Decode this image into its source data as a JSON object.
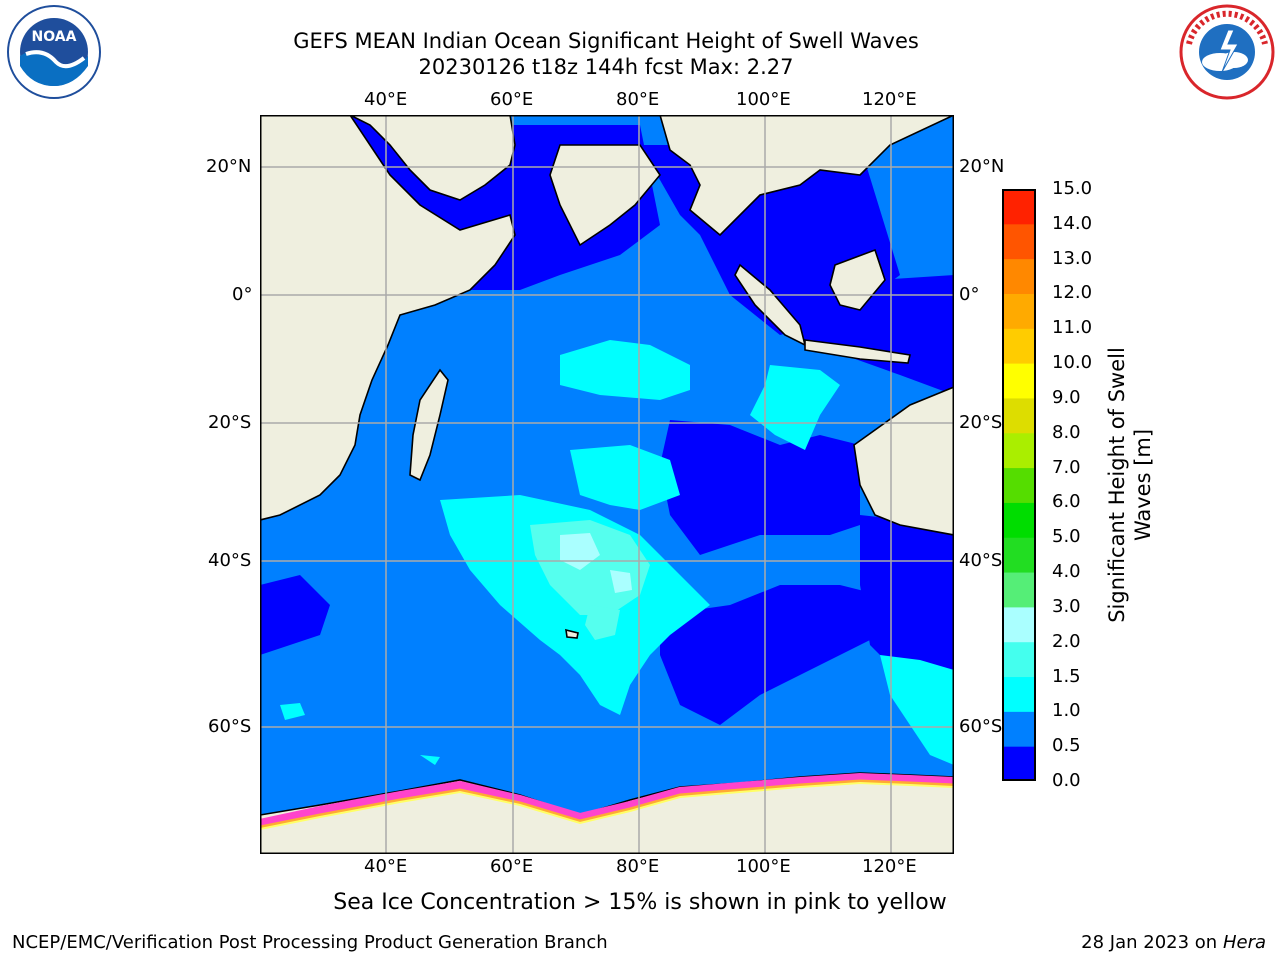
{
  "title": {
    "line1": "GEFS MEAN Indian Ocean Significant Height of Swell Waves",
    "line2": "20230126 t18z 144h fcst   Max: 2.27"
  },
  "logos": {
    "left": {
      "name": "NOAA",
      "ring_text": "NATIONAL OCEANIC AND ATMOSPHERIC ADMINISTRATION · U.S. DEPARTMENT OF COMMERCE",
      "colors": [
        "#1f4e9c",
        "#0a6fc2",
        "#ffffff"
      ]
    },
    "right": {
      "name": "NATIONAL WEATHER SERVICE",
      "colors": [
        "#d9262b",
        "#1f6fc1",
        "#ffffff"
      ]
    }
  },
  "map": {
    "projection": "cylindrical",
    "lon_range": [
      "20°E",
      "130°E"
    ],
    "lat_range": [
      "75°S",
      "28°N"
    ],
    "lon_ticks": [
      "40°E",
      "60°E",
      "80°E",
      "100°E",
      "120°E"
    ],
    "lat_ticks": [
      "20°N",
      "0°",
      "20°S",
      "40°S",
      "60°S"
    ],
    "grid": true,
    "land_color": "#efefdf",
    "ocean_bins_present": [
      "0.0-0.5",
      "0.5-1.0",
      "1.0-1.5",
      "1.5-2.0",
      "2.0-3.0"
    ],
    "sea_ice_colors": [
      "#ff44cc",
      "#ffaa33",
      "#ffff66"
    ]
  },
  "colorbar": {
    "title_line1": "Significant Height of Swell",
    "title_line2": "Waves [m]",
    "ticks": [
      "0.0",
      "0.5",
      "1.0",
      "1.5",
      "2.0",
      "3.0",
      "4.0",
      "5.0",
      "6.0",
      "7.0",
      "8.0",
      "9.0",
      "10.0",
      "11.0",
      "12.0",
      "13.0",
      "14.0",
      "15.0"
    ],
    "colors": [
      "#0000ff",
      "#0080ff",
      "#00ffff",
      "#44ffee",
      "#aaffff",
      "#55ee77",
      "#22dd22",
      "#00dd00",
      "#55dd00",
      "#aaee00",
      "#dddd00",
      "#ffff00",
      "#ffcc00",
      "#ffaa00",
      "#ff8800",
      "#ff5500",
      "#ff2200",
      "#ff0000"
    ]
  },
  "caption": "Sea Ice Concentration > 15% is shown in pink to yellow",
  "footer": {
    "left": "NCEP/EMC/Verification Post Processing Product Generation Branch",
    "right_date": "28 Jan 2023 on",
    "right_host": "Hera"
  }
}
